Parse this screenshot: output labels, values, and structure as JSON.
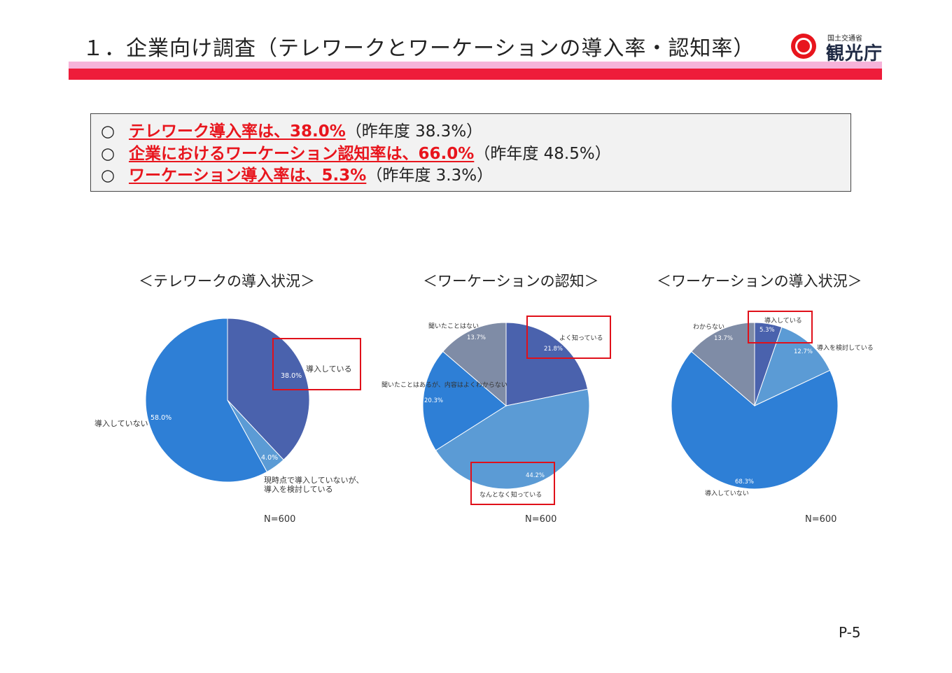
{
  "header": {
    "title": "１．企業向け調査（テレワークとワーケーションの導入率・認知率）",
    "logo_small": "国土交通省",
    "logo_main": "観光庁"
  },
  "summary": {
    "bullet": "○",
    "lines": [
      {
        "highlight": "テレワーク導入率は、38.0%",
        "rest": "（昨年度 38.3%）"
      },
      {
        "highlight": "企業におけるワーケーション認知率は、66.0%",
        "rest": "（昨年度 48.5%）"
      },
      {
        "highlight": "ワーケーション導入率は、5.3%",
        "rest": "（昨年度 3.3%）"
      }
    ]
  },
  "chart_data": [
    {
      "type": "pie",
      "title": "＜テレワークの導入状況＞",
      "n_label": "N=600",
      "slices": [
        {
          "label": "導入している",
          "value": 38.0,
          "pct_label": "38.0%",
          "color": "#4a62ad"
        },
        {
          "label": "現時点で導入していないが、",
          "label2": "導入を検討している",
          "value": 4.0,
          "pct_label": "4.0%",
          "color": "#5b9bd5"
        },
        {
          "label": "導入していない",
          "value": 58.0,
          "pct_label": "58.0%",
          "color": "#2e7fd6"
        }
      ]
    },
    {
      "type": "pie",
      "title": "＜ワーケーションの認知＞",
      "n_label": "N=600",
      "slices": [
        {
          "label": "よく知っている",
          "value": 21.8,
          "pct_label": "21.8%",
          "color": "#4a62ad"
        },
        {
          "label": "なんとなく知っている",
          "value": 44.2,
          "pct_label": "44.2%",
          "color": "#5b9bd5"
        },
        {
          "label": "聞いたことはあるが、内容はよくわからない",
          "value": 20.3,
          "pct_label": "20.3%",
          "color": "#2e7fd6"
        },
        {
          "label": "聞いたことはない",
          "value": 13.7,
          "pct_label": "13.7%",
          "color": "#7f8ca6"
        }
      ]
    },
    {
      "type": "pie",
      "title": "＜ワーケーションの導入状況＞",
      "n_label": "N=600",
      "slices": [
        {
          "label": "導入している",
          "value": 5.3,
          "pct_label": "5.3%",
          "color": "#4a62ad"
        },
        {
          "label": "導入を検討している",
          "value": 12.7,
          "pct_label": "12.7%",
          "color": "#5b9bd5"
        },
        {
          "label": "導入していない",
          "value": 68.3,
          "pct_label": "68.3%",
          "color": "#2e7fd6"
        },
        {
          "label": "わからない",
          "value": 13.7,
          "pct_label": "13.7%",
          "color": "#7f8ca6"
        }
      ]
    }
  ],
  "footer": {
    "page": "P-5"
  }
}
